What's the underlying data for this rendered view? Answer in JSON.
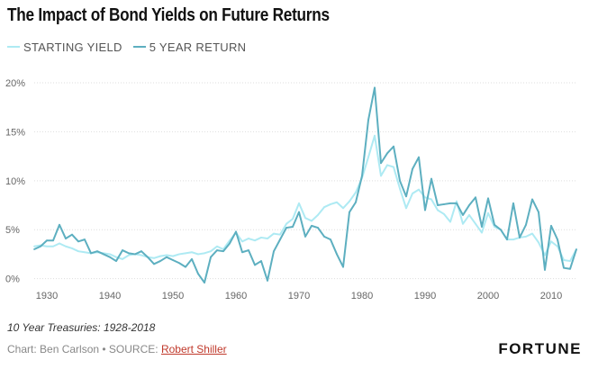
{
  "title": "The Impact of Bond Yields on Future Returns",
  "footnote": "10 Year Treasuries: 1928-2018",
  "credit": {
    "prefix": "Chart: Ben Carlson • SOURCE: ",
    "source_link": "Robert Shiller"
  },
  "brand": "FORTUNE",
  "chart_data": {
    "type": "line",
    "title": "The Impact of Bond Yields on Future Returns",
    "xlabel": "",
    "ylabel": "",
    "xlim": [
      1928,
      2014
    ],
    "ylim": [
      -0.4,
      20
    ],
    "x_ticks": [
      1930,
      1940,
      1950,
      1960,
      1970,
      1980,
      1990,
      2000,
      2010
    ],
    "x_tick_labels": [
      "1930",
      "1940",
      "1950",
      "1960",
      "1970",
      "1980",
      "1990",
      "2000",
      "2010"
    ],
    "y_ticks": [
      0,
      5,
      10,
      15,
      20
    ],
    "y_tick_labels": [
      "0%",
      "5%",
      "10%",
      "15%",
      "20%"
    ],
    "grid": "horizontal",
    "legend_position": "top-left",
    "x": [
      1928,
      1929,
      1930,
      1931,
      1932,
      1933,
      1934,
      1935,
      1936,
      1937,
      1938,
      1939,
      1940,
      1941,
      1942,
      1943,
      1944,
      1945,
      1946,
      1947,
      1948,
      1949,
      1950,
      1951,
      1952,
      1953,
      1954,
      1955,
      1956,
      1957,
      1958,
      1959,
      1960,
      1961,
      1962,
      1963,
      1964,
      1965,
      1966,
      1967,
      1968,
      1969,
      1970,
      1971,
      1972,
      1973,
      1974,
      1975,
      1976,
      1977,
      1978,
      1979,
      1980,
      1981,
      1982,
      1983,
      1984,
      1985,
      1986,
      1987,
      1988,
      1989,
      1990,
      1991,
      1992,
      1993,
      1994,
      1995,
      1996,
      1997,
      1998,
      1999,
      2000,
      2001,
      2002,
      2003,
      2004,
      2005,
      2006,
      2007,
      2008,
      2009,
      2010,
      2011,
      2012,
      2013,
      2014
    ],
    "series": [
      {
        "name": "STARTING YIELD",
        "color": "#aeeaf3",
        "values": [
          3.3,
          3.4,
          3.3,
          3.3,
          3.6,
          3.3,
          3.1,
          2.8,
          2.7,
          2.6,
          2.7,
          2.6,
          2.5,
          2.2,
          2.0,
          2.4,
          2.5,
          2.4,
          2.2,
          2.1,
          2.3,
          2.4,
          2.3,
          2.5,
          2.6,
          2.7,
          2.5,
          2.6,
          2.8,
          3.3,
          3.0,
          3.9,
          4.7,
          3.8,
          4.1,
          3.9,
          4.2,
          4.1,
          4.6,
          4.5,
          5.6,
          6.1,
          7.7,
          6.2,
          5.9,
          6.5,
          7.3,
          7.6,
          7.8,
          7.2,
          7.9,
          8.8,
          10.3,
          12.4,
          14.6,
          10.5,
          11.6,
          11.4,
          9.2,
          7.2,
          8.7,
          9.1,
          8.3,
          8.1,
          7.0,
          6.6,
          5.8,
          7.9,
          5.6,
          6.5,
          5.6,
          4.7,
          6.7,
          5.3,
          5.0,
          4.0,
          4.0,
          4.2,
          4.3,
          4.6,
          3.7,
          2.4,
          3.8,
          3.3,
          1.9,
          1.8,
          3.0
        ]
      },
      {
        "name": "5 YEAR RETURN",
        "color": "#5dafc0",
        "values": [
          3.0,
          3.3,
          3.9,
          3.9,
          5.5,
          4.1,
          4.5,
          3.8,
          4.0,
          2.6,
          2.8,
          2.5,
          2.2,
          1.8,
          2.9,
          2.6,
          2.5,
          2.8,
          2.2,
          1.5,
          1.8,
          2.2,
          1.9,
          1.6,
          1.2,
          2.0,
          0.5,
          -0.4,
          2.2,
          2.9,
          2.8,
          3.6,
          4.8,
          2.7,
          2.9,
          1.4,
          1.8,
          -0.2,
          2.8,
          4.0,
          5.2,
          5.3,
          6.8,
          4.3,
          5.4,
          5.2,
          4.3,
          4.0,
          2.5,
          1.2,
          6.8,
          7.8,
          10.5,
          16.2,
          19.5,
          11.8,
          12.8,
          13.5,
          10.0,
          8.4,
          11.2,
          12.4,
          7.0,
          10.2,
          7.5,
          7.6,
          7.7,
          7.7,
          6.5,
          7.5,
          8.3,
          5.3,
          8.2,
          5.5,
          5.0,
          4.0,
          7.7,
          4.2,
          5.5,
          8.1,
          6.8,
          0.9,
          5.4,
          4.0,
          1.1,
          1.0,
          3.0
        ]
      }
    ]
  }
}
